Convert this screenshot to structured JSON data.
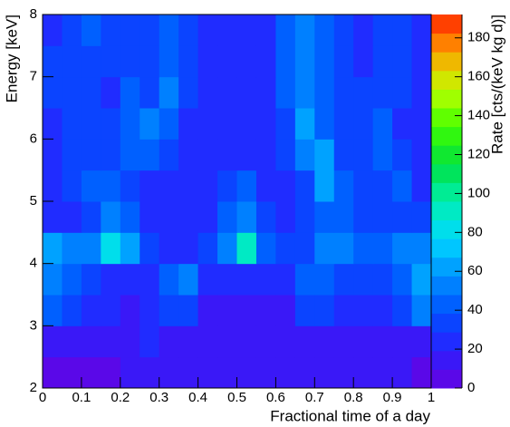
{
  "chart_data": {
    "type": "heatmap",
    "xlabel": "Fractional time of a day",
    "ylabel": "Energy [keV]",
    "zlabel": "Rate [cts/(keV kg d)]",
    "xlim": [
      0,
      1
    ],
    "ylim": [
      2,
      8
    ],
    "zlim": [
      0,
      192
    ],
    "xticks": [
      0,
      0.1,
      0.2,
      0.3,
      0.4,
      0.5,
      0.6,
      0.7,
      0.8,
      0.9,
      1
    ],
    "yticks": [
      2,
      3,
      4,
      5,
      6,
      7,
      8
    ],
    "zticks": [
      0,
      20,
      40,
      60,
      80,
      100,
      120,
      140,
      160,
      180
    ],
    "xbins": [
      0,
      0.05,
      0.1,
      0.15,
      0.2,
      0.25,
      0.3,
      0.35,
      0.4,
      0.45,
      0.5,
      0.55,
      0.6,
      0.65,
      0.7,
      0.75,
      0.8,
      0.85,
      0.9,
      0.95,
      1
    ],
    "ybins": [
      2,
      2.5,
      3,
      3.5,
      4,
      4.5,
      5,
      5.5,
      6,
      6.5,
      7,
      7.5,
      8
    ],
    "levels": 20,
    "palette": [
      "#6a00e0",
      "#2a20ff",
      "#0050ff",
      "#0090ff",
      "#00d8ff",
      "#00f0b0",
      "#00e040",
      "#40ff00",
      "#c0ff00",
      "#ffa000",
      "#ff2000"
    ],
    "z": [
      [
        8,
        8,
        8,
        8,
        10,
        18,
        10,
        12,
        14,
        10,
        10,
        10,
        18,
        12,
        18,
        10,
        10,
        10,
        10,
        8
      ],
      [
        14,
        10,
        10,
        10,
        12,
        20,
        14,
        16,
        10,
        10,
        10,
        10,
        14,
        14,
        14,
        10,
        10,
        10,
        12,
        10
      ],
      [
        40,
        35,
        25,
        20,
        18,
        20,
        30,
        30,
        15,
        15,
        15,
        15,
        15,
        30,
        30,
        25,
        25,
        25,
        35,
        50
      ],
      [
        55,
        40,
        30,
        25,
        25,
        20,
        45,
        50,
        22,
        22,
        25,
        25,
        22,
        40,
        40,
        35,
        35,
        30,
        40,
        60
      ],
      [
        60,
        50,
        50,
        80,
        60,
        30,
        25,
        25,
        30,
        50,
        90,
        40,
        30,
        35,
        50,
        55,
        40,
        45,
        50,
        55
      ],
      [
        20,
        25,
        35,
        50,
        40,
        20,
        20,
        20,
        20,
        40,
        50,
        30,
        25,
        30,
        45,
        40,
        30,
        30,
        35,
        30
      ],
      [
        20,
        30,
        45,
        40,
        30,
        25,
        25,
        25,
        20,
        30,
        40,
        25,
        25,
        30,
        60,
        45,
        30,
        35,
        40,
        25
      ],
      [
        25,
        35,
        35,
        30,
        45,
        45,
        30,
        25,
        20,
        25,
        25,
        25,
        30,
        50,
        60,
        35,
        30,
        45,
        30,
        20
      ],
      [
        25,
        30,
        30,
        30,
        45,
        50,
        40,
        25,
        20,
        20,
        20,
        20,
        35,
        60,
        40,
        35,
        30,
        40,
        25,
        20
      ],
      [
        30,
        30,
        30,
        25,
        40,
        35,
        50,
        30,
        20,
        20,
        20,
        20,
        40,
        55,
        40,
        35,
        30,
        35,
        30,
        20
      ],
      [
        30,
        35,
        35,
        30,
        35,
        30,
        40,
        30,
        20,
        20,
        20,
        20,
        40,
        50,
        40,
        35,
        25,
        30,
        30,
        20
      ],
      [
        25,
        35,
        40,
        30,
        35,
        30,
        40,
        30,
        20,
        20,
        20,
        20,
        40,
        50,
        40,
        35,
        25,
        30,
        30,
        20
      ]
    ]
  }
}
